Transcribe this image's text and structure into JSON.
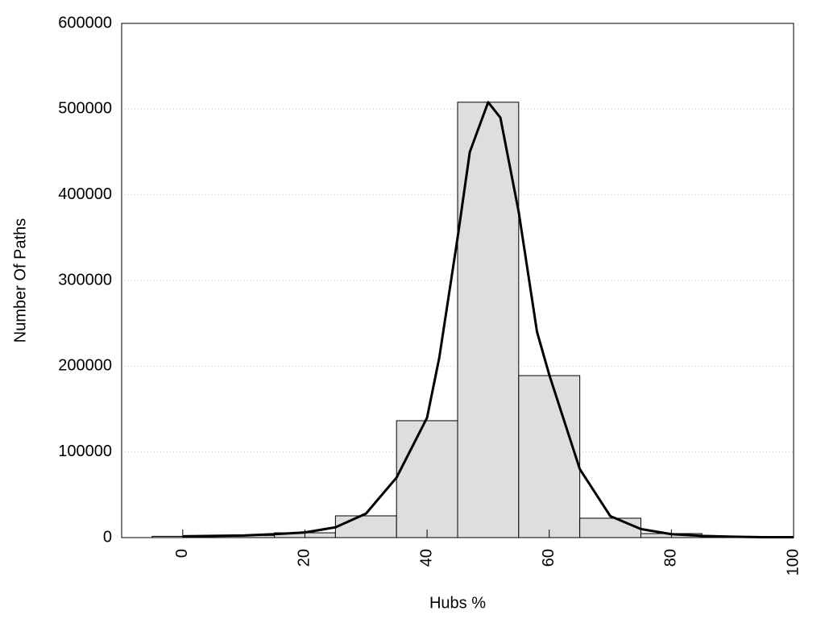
{
  "chart_data": {
    "type": "histogram",
    "xlabel": "Hubs %",
    "ylabel": "Number Of Paths",
    "bins": [
      -5,
      5,
      15,
      25,
      35,
      45,
      55,
      65,
      75,
      85,
      95
    ],
    "values": [
      1500,
      2500,
      5600,
      25400,
      136400,
      508000,
      189000,
      22600,
      4700,
      1000
    ],
    "color": "#dedede",
    "curve": {
      "color": "#000000",
      "x": [
        0,
        5,
        10,
        15,
        20,
        25,
        30,
        35,
        40,
        42,
        45,
        47,
        50,
        52,
        55,
        58,
        60,
        65,
        70,
        75,
        80,
        85,
        90,
        95,
        100
      ],
      "values": [
        1500,
        2000,
        2500,
        4000,
        6000,
        12000,
        28000,
        70000,
        140000,
        210000,
        350000,
        450000,
        508000,
        490000,
        380000,
        240000,
        190000,
        80000,
        25000,
        10000,
        4000,
        2000,
        1000,
        500,
        500
      ]
    },
    "xlim": [
      -10,
      100
    ],
    "xticks": [
      0,
      20,
      40,
      60,
      80,
      100
    ],
    "ylim": [
      0,
      600000
    ],
    "yticks": [
      0,
      100000,
      200000,
      300000,
      400000,
      500000,
      600000
    ],
    "grid": true
  }
}
